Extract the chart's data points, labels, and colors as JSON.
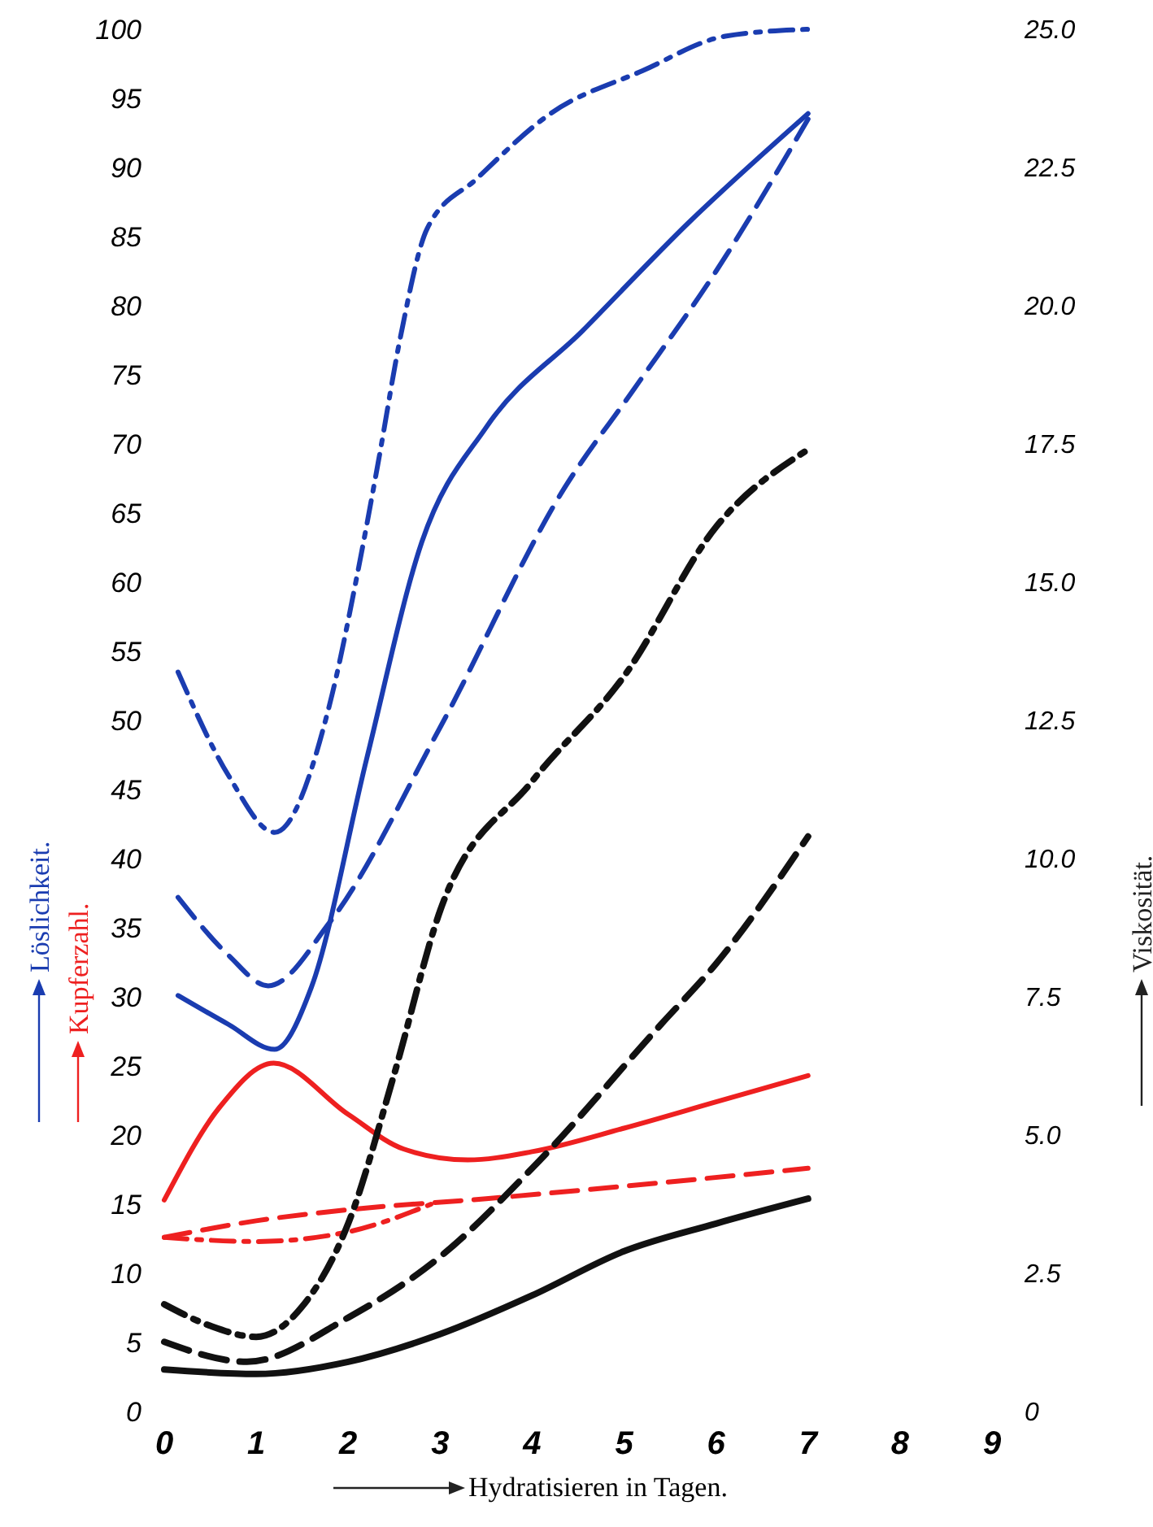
{
  "chart_data": {
    "type": "line",
    "xlabel": "Hydratisieren in Tagen.",
    "ylabel": "Löslichkeit.",
    "y2label": "Viskosität.",
    "annotations": [
      "Kupferzahl."
    ],
    "xlim": [
      0,
      9
    ],
    "xticks": [
      0,
      1,
      2,
      3,
      4,
      5,
      6,
      7,
      8,
      9
    ],
    "ylim": [
      0,
      100
    ],
    "yticks": [
      0,
      5,
      10,
      15,
      20,
      25,
      30,
      35,
      40,
      45,
      50,
      55,
      60,
      65,
      70,
      75,
      80,
      85,
      90,
      95,
      100
    ],
    "y2lim": [
      0,
      25
    ],
    "y2ticks": [
      0,
      {
        "value": 2.5,
        "label": "2.5"
      },
      {
        "value": 5,
        "label": "5.0"
      },
      {
        "value": 7.5,
        "label": "7.5"
      },
      {
        "value": 10,
        "label": "10.0"
      },
      {
        "value": 12.5,
        "label": "12.5"
      },
      {
        "value": 15,
        "label": "15.0"
      },
      {
        "value": 17.5,
        "label": "17.5"
      },
      {
        "value": 20,
        "label": "20.0"
      },
      {
        "value": 22.5,
        "label": "22.5"
      },
      {
        "value": 25,
        "label": "25.0"
      }
    ],
    "grid": false,
    "series": [
      {
        "color": "#1a3cb0",
        "line_style": "dashdot",
        "x": [
          0.15,
          0.7,
          1.2,
          1.8,
          2.1,
          2.33,
          2.57,
          2.86,
          3.4,
          4.2,
          5.2,
          6.1,
          7
        ],
        "values": [
          53.5,
          46,
          41.9,
          51.2,
          60.6,
          68.8,
          77.8,
          85.6,
          89.2,
          93.9,
          97,
          99.5,
          100
        ]
      },
      {
        "color": "#1a3cb0",
        "line_style": "solid",
        "x": [
          0.15,
          0.7,
          1.2,
          1.6,
          2.2,
          2.8,
          3.5,
          4.55,
          5.7,
          7
        ],
        "values": [
          30.1,
          28,
          26.2,
          30.7,
          47.2,
          62.9,
          71.2,
          78.2,
          86,
          93.9
        ]
      },
      {
        "color": "#1a3cb0",
        "line_style": "dashed",
        "x": [
          0.15,
          0.7,
          1.13,
          1.8,
          3,
          4.35,
          5.1,
          6,
          7
        ],
        "values": [
          37.2,
          33,
          30.8,
          35.4,
          49.5,
          66.8,
          73.9,
          82.5,
          93.5
        ]
      },
      {
        "color": "#ee2020",
        "line_style": "solid",
        "x": [
          0,
          0.6,
          1.19,
          2,
          2.6,
          3.3,
          4,
          5,
          6,
          7
        ],
        "values": [
          15.3,
          22,
          25.2,
          21.5,
          19,
          18.2,
          18.8,
          20.5,
          22.4,
          24.3
        ]
      },
      {
        "color": "#ee2020",
        "line_style": "dashed",
        "x": [
          0,
          1,
          2,
          3.5,
          5,
          7
        ],
        "values": [
          12.6,
          13.8,
          14.6,
          15.4,
          16.3,
          17.6
        ]
      },
      {
        "color": "#ee2020",
        "line_style": "dashdot",
        "x": [
          0,
          1,
          2,
          2.9
        ],
        "values": [
          12.6,
          12.3,
          13,
          15
        ]
      },
      {
        "color": "#111111",
        "axis": "y2",
        "line_style": "dashdot",
        "x": [
          0,
          0.5,
          1,
          1.5,
          2,
          2.5,
          3,
          4,
          5,
          6,
          7
        ],
        "values": [
          1.94,
          1.55,
          1.35,
          1.9,
          3.4,
          6.1,
          9.06,
          11.4,
          13.3,
          16.0,
          17.4
        ]
      },
      {
        "color": "#111111",
        "axis": "y2",
        "line_style": "dashed",
        "x": [
          0,
          0.9,
          2,
          3,
          4,
          5.4,
          6,
          7
        ],
        "values": [
          1.26,
          0.9,
          1.7,
          2.8,
          4.4,
          7.0,
          8.1,
          10.4
        ]
      },
      {
        "color": "#111111",
        "axis": "y2",
        "line_style": "solid",
        "x": [
          0,
          1,
          2,
          3,
          4,
          5,
          6,
          7
        ],
        "values": [
          0.76,
          0.68,
          0.9,
          1.4,
          2.1,
          2.9,
          3.4,
          3.85
        ]
      }
    ]
  }
}
